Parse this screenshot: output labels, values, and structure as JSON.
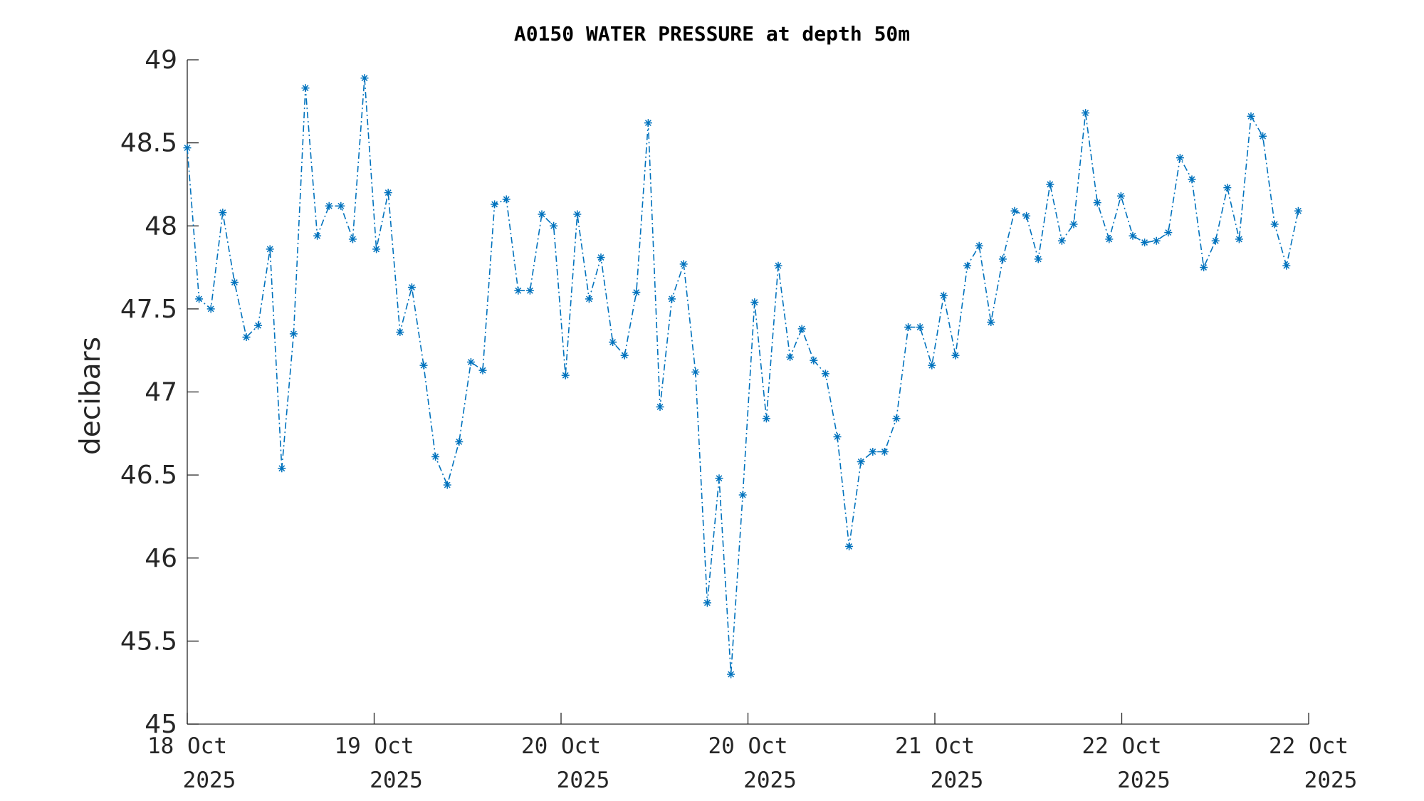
{
  "chart_data": {
    "type": "line",
    "title": "A0150 WATER PRESSURE at depth 50m",
    "xlabel": "",
    "ylabel": "decibars",
    "ylim": [
      45,
      49
    ],
    "yticks": [
      "45",
      "45.5",
      "46",
      "46.5",
      "47",
      "47.5",
      "48",
      "48.5",
      "49"
    ],
    "xlim": [
      "2025-10-18",
      "2025-10-22"
    ],
    "xtick_labels": [
      {
        "line1": "18 Oct",
        "line2": "2025"
      },
      {
        "line1": "19 Oct",
        "line2": "2025"
      },
      {
        "line1": "20 Oct",
        "line2": "2025"
      },
      {
        "line1": "20 Oct",
        "line2": "2025"
      },
      {
        "line1": "21 Oct",
        "line2": "2025"
      },
      {
        "line1": "22 Oct",
        "line2": "2025"
      },
      {
        "line1": "22 Oct",
        "line2": "2025"
      }
    ],
    "grid": false,
    "series": [
      {
        "color": "#0072bd",
        "line_style": "dash-dot",
        "marker": "asterisk",
        "values": [
          48.47,
          47.56,
          47.5,
          48.08,
          47.66,
          47.33,
          47.4,
          47.86,
          46.54,
          47.35,
          48.83,
          47.94,
          48.12,
          48.12,
          47.92,
          48.89,
          47.86,
          48.2,
          47.36,
          47.63,
          47.16,
          46.61,
          46.44,
          46.7,
          47.18,
          47.13,
          48.13,
          48.16,
          47.61,
          47.61,
          48.07,
          48.0,
          47.1,
          48.07,
          47.56,
          47.81,
          47.3,
          47.22,
          47.6,
          48.62,
          46.91,
          47.56,
          47.77,
          47.12,
          45.73,
          46.48,
          45.3,
          46.38,
          47.54,
          46.84,
          47.76,
          47.21,
          47.38,
          47.19,
          47.11,
          46.73,
          46.07,
          46.58,
          46.64,
          46.64,
          46.84,
          47.39,
          47.39,
          47.16,
          47.58,
          47.22,
          47.76,
          47.88,
          47.42,
          47.8,
          48.09,
          48.06,
          47.8,
          48.25,
          47.91,
          48.01,
          48.68,
          48.14,
          47.92,
          48.18,
          47.94,
          47.9,
          47.91,
          47.96,
          48.41,
          48.28,
          47.75,
          47.91,
          48.23,
          47.92,
          48.66,
          48.54,
          48.01,
          47.76,
          48.09
        ]
      }
    ]
  }
}
